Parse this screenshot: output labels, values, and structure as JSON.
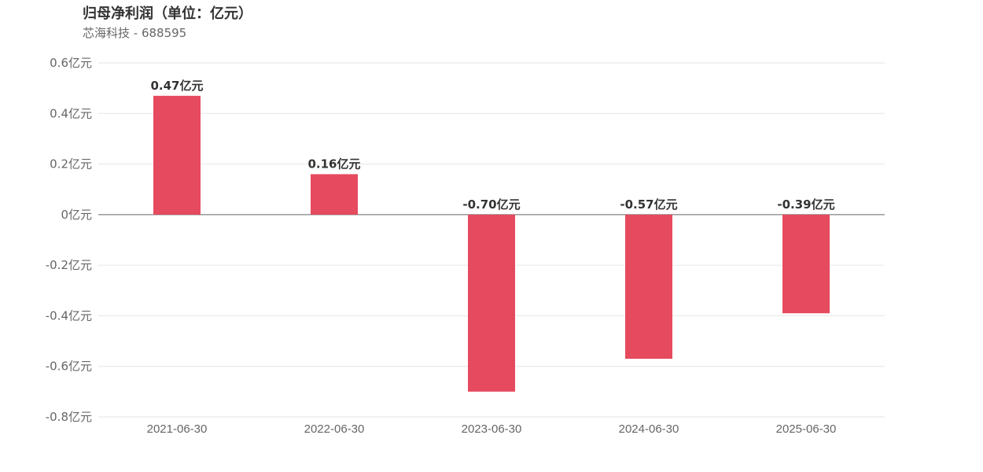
{
  "header": {
    "title": "归母净利润（单位：亿元）",
    "subtitle": "芯海科技 - 688595"
  },
  "chart_data": {
    "type": "bar",
    "categories": [
      "2021-06-30",
      "2022-06-30",
      "2023-06-30",
      "2024-06-30",
      "2025-06-30"
    ],
    "values": [
      0.47,
      0.16,
      -0.7,
      -0.57,
      -0.39
    ],
    "data_labels": [
      "0.47亿元",
      "0.16亿元",
      "-0.70亿元",
      "-0.57亿元",
      "-0.39亿元"
    ],
    "yticks": [
      0.6,
      0.4,
      0.2,
      0,
      -0.2,
      -0.4,
      -0.6,
      -0.8
    ],
    "ytick_labels": [
      "0.6亿元",
      "0.4亿元",
      "0.2亿元",
      "0亿元",
      "-0.2亿元",
      "-0.4亿元",
      "-0.6亿元",
      "-0.8亿元"
    ],
    "ylim": [
      -0.8,
      0.6
    ],
    "grid": true,
    "legend": "none",
    "colors": {
      "bar": "#e64a5e",
      "grid": "#e6e6e6",
      "zero_line": "#666666"
    }
  }
}
